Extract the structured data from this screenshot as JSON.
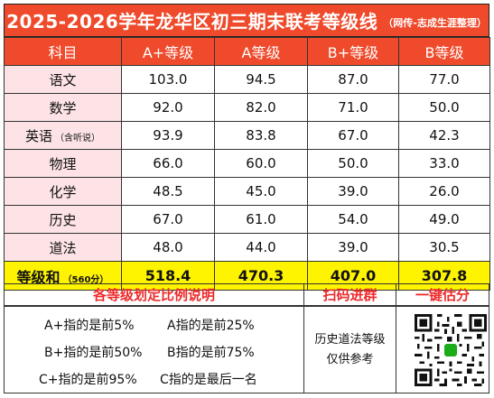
{
  "title": {
    "main": "2025-2026学年龙华区初三期末联考等级线",
    "source": "（网传-志成生涯整理）"
  },
  "table": {
    "headers": [
      "科目",
      "A+等级",
      "A等级",
      "B+等级",
      "B等级"
    ],
    "rows": [
      {
        "subject": "语文",
        "note": "",
        "values": [
          "103.0",
          "94.5",
          "87.0",
          "77.0"
        ]
      },
      {
        "subject": "数学",
        "note": "",
        "values": [
          "92.0",
          "82.0",
          "71.0",
          "50.0"
        ]
      },
      {
        "subject": "英语",
        "note": "（含听说）",
        "values": [
          "93.9",
          "83.8",
          "67.0",
          "42.3"
        ]
      },
      {
        "subject": "物理",
        "note": "",
        "values": [
          "66.0",
          "60.0",
          "50.0",
          "33.0"
        ]
      },
      {
        "subject": "化学",
        "note": "",
        "values": [
          "48.5",
          "45.0",
          "39.0",
          "26.0"
        ]
      },
      {
        "subject": "历史",
        "note": "",
        "values": [
          "67.0",
          "61.0",
          "54.0",
          "49.0"
        ]
      },
      {
        "subject": "道法",
        "note": "",
        "values": [
          "48.0",
          "44.0",
          "39.0",
          "30.5"
        ]
      }
    ],
    "total": {
      "subject": "等级和",
      "note": "（560分）",
      "values": [
        "518.4",
        "470.3",
        "407.0",
        "307.8"
      ]
    }
  },
  "footer": {
    "ratio_title": "各等级划定比例说明",
    "scan_title": "扫码进群",
    "estimate_title": "一键估分",
    "ratios": [
      [
        "A+指的是前5%",
        "A指的是前25%"
      ],
      [
        "B+指的是前50%",
        "B指的是前75%"
      ],
      [
        "C+指的是前95%",
        "C指的是最后一名"
      ]
    ],
    "note_line1": "历史道法等级",
    "note_line2": "仅供参考"
  }
}
